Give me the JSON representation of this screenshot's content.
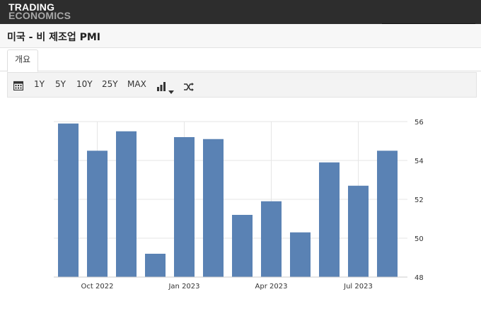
{
  "brand": {
    "line1": "TRADING",
    "line2": "ECONOMICS"
  },
  "page": {
    "title": "미국 - 비 제조업 PMI"
  },
  "tabs": [
    {
      "label": "개요"
    }
  ],
  "toolbar": {
    "ranges": [
      "1Y",
      "5Y",
      "10Y",
      "25Y",
      "MAX"
    ],
    "icons": [
      "calendar-icon",
      "bar-chart-icon",
      "chevron-down-icon",
      "shuffle-icon"
    ]
  },
  "colors": {
    "bar": "#5a82b4",
    "grid": "#e6e6e6",
    "topbar": "#2d2d2d"
  },
  "chart_data": {
    "type": "bar",
    "x": [
      "2022-09",
      "2022-10",
      "2022-11",
      "2022-12",
      "2023-01",
      "2023-02",
      "2023-03",
      "2023-04",
      "2023-05",
      "2023-06",
      "2023-07",
      "2023-08"
    ],
    "values": [
      55.9,
      54.5,
      55.5,
      49.2,
      55.2,
      55.1,
      51.2,
      51.9,
      50.3,
      53.9,
      52.7,
      54.5
    ],
    "xticks": [
      {
        "at": "2022-10",
        "label": "Oct 2022"
      },
      {
        "at": "2023-01",
        "label": "Jan 2023"
      },
      {
        "at": "2023-04",
        "label": "Apr 2023"
      },
      {
        "at": "2023-07",
        "label": "Jul 2023"
      }
    ],
    "yticks": [
      "48",
      "50",
      "52",
      "54",
      "56"
    ],
    "ylim": [
      48,
      56
    ],
    "grid": true,
    "yaxis_side": "right"
  }
}
